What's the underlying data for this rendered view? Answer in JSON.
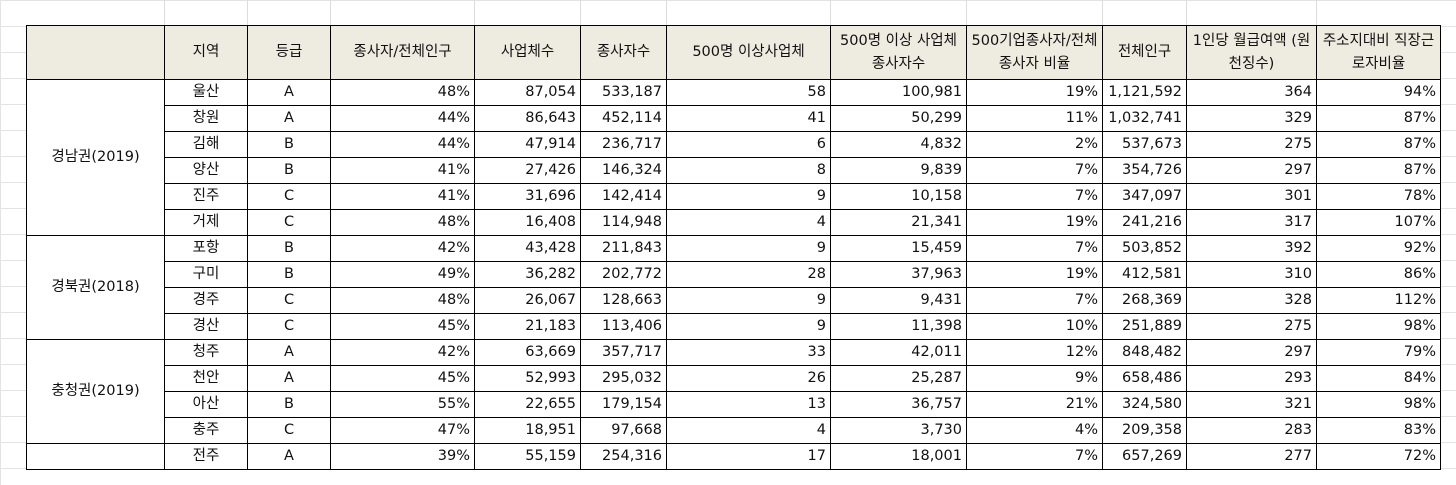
{
  "sheet": {
    "headers": [
      "",
      "지역",
      "등급",
      "종사자/전체인구",
      "사업체수",
      "종사자수",
      "500명 이상사업체",
      "500명 이상 사업체 종사자수",
      "500기업종사자/전체종사자 비율",
      "전체인구",
      "1인당 월급여액 (원천징수)",
      "주소지대비 직장근로자비율"
    ],
    "groups": [
      {
        "region": "경남권(2019)",
        "rows": [
          [
            "울산",
            "A",
            "48%",
            "87,054",
            "533,187",
            "58",
            "100,981",
            "19%",
            "1,121,592",
            "364",
            "94%"
          ],
          [
            "창원",
            "A",
            "44%",
            "86,643",
            "452,114",
            "41",
            "50,299",
            "11%",
            "1,032,741",
            "329",
            "87%"
          ],
          [
            "김해",
            "B",
            "44%",
            "47,914",
            "236,717",
            "6",
            "4,832",
            "2%",
            "537,673",
            "275",
            "87%"
          ],
          [
            "양산",
            "B",
            "41%",
            "27,426",
            "146,324",
            "8",
            "9,839",
            "7%",
            "354,726",
            "297",
            "87%"
          ],
          [
            "진주",
            "C",
            "41%",
            "31,696",
            "142,414",
            "9",
            "10,158",
            "7%",
            "347,097",
            "301",
            "78%"
          ],
          [
            "거제",
            "C",
            "48%",
            "16,408",
            "114,948",
            "4",
            "21,341",
            "19%",
            "241,216",
            "317",
            "107%"
          ]
        ]
      },
      {
        "region": "경북권(2018)",
        "rows": [
          [
            "포항",
            "B",
            "42%",
            "43,428",
            "211,843",
            "9",
            "15,459",
            "7%",
            "503,852",
            "392",
            "92%"
          ],
          [
            "구미",
            "B",
            "49%",
            "36,282",
            "202,772",
            "28",
            "37,963",
            "19%",
            "412,581",
            "310",
            "86%"
          ],
          [
            "경주",
            "C",
            "48%",
            "26,067",
            "128,663",
            "9",
            "9,431",
            "7%",
            "268,369",
            "328",
            "112%"
          ],
          [
            "경산",
            "C",
            "45%",
            "21,183",
            "113,406",
            "9",
            "11,398",
            "10%",
            "251,889",
            "275",
            "98%"
          ]
        ]
      },
      {
        "region": "충청권(2019)",
        "rows": [
          [
            "청주",
            "A",
            "42%",
            "63,669",
            "357,717",
            "33",
            "42,011",
            "12%",
            "848,482",
            "297",
            "79%"
          ],
          [
            "천안",
            "A",
            "45%",
            "52,993",
            "295,032",
            "26",
            "25,287",
            "9%",
            "658,486",
            "293",
            "84%"
          ],
          [
            "아산",
            "B",
            "55%",
            "22,655",
            "179,154",
            "13",
            "36,757",
            "21%",
            "324,580",
            "321",
            "98%"
          ],
          [
            "충주",
            "C",
            "47%",
            "18,951",
            "97,668",
            "4",
            "3,730",
            "4%",
            "209,358",
            "283",
            "83%"
          ]
        ]
      },
      {
        "region": "",
        "rows": [
          [
            "전주",
            "A",
            "39%",
            "55,159",
            "254,316",
            "17",
            "18,001",
            "7%",
            "657,269",
            "277",
            "72%"
          ]
        ]
      }
    ]
  }
}
